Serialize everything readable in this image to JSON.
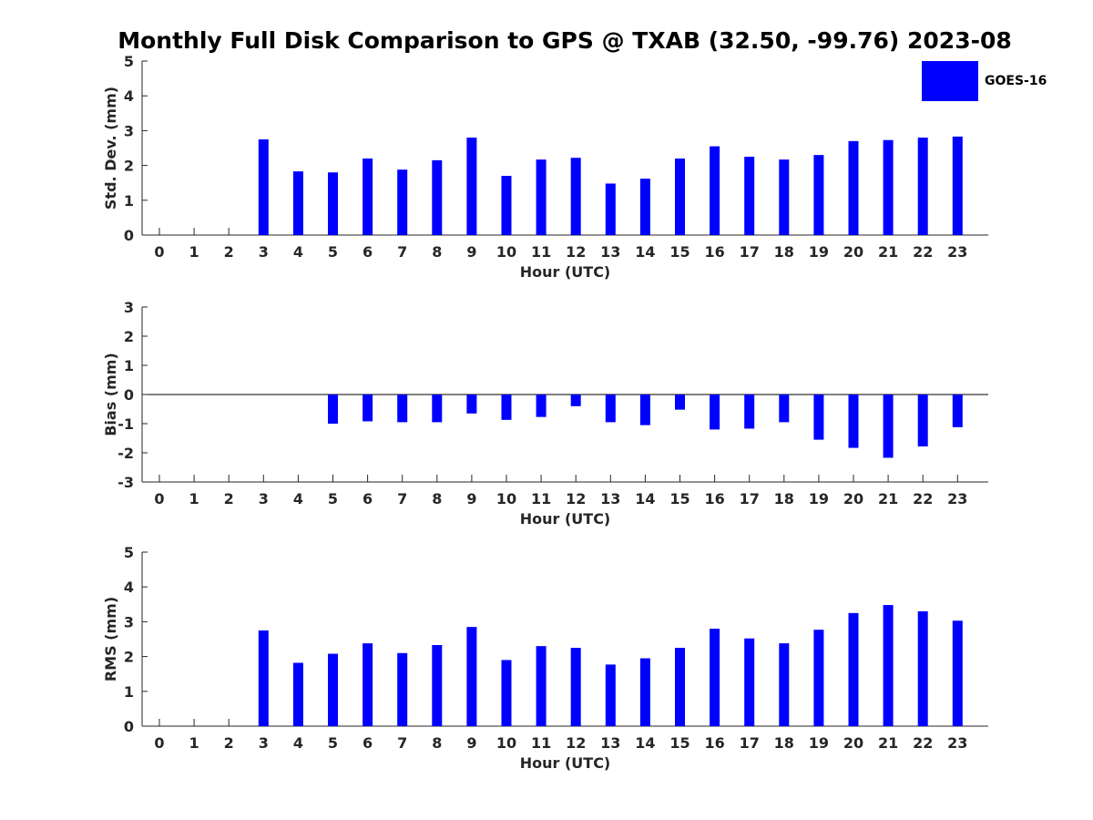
{
  "title": "Monthly Full Disk Comparison to GPS @ TXAB (32.50, -99.76) 2023-08",
  "legend": {
    "label": "GOES-16",
    "color": "#0000ff"
  },
  "chart_data": [
    {
      "type": "bar",
      "ylabel": "Std. Dev. (mm)",
      "xlabel": "Hour (UTC)",
      "ylim": [
        0,
        5
      ],
      "yticks": [
        0,
        1,
        2,
        3,
        4,
        5
      ],
      "categories": [
        "0",
        "1",
        "2",
        "3",
        "4",
        "5",
        "6",
        "7",
        "8",
        "9",
        "10",
        "11",
        "12",
        "13",
        "14",
        "15",
        "16",
        "17",
        "18",
        "19",
        "20",
        "21",
        "22",
        "23"
      ],
      "series": [
        {
          "name": "GOES-16",
          "values": [
            null,
            null,
            null,
            2.75,
            1.83,
            1.8,
            2.2,
            1.88,
            2.15,
            2.8,
            1.7,
            2.17,
            2.22,
            1.48,
            1.62,
            2.2,
            2.55,
            2.25,
            2.17,
            2.3,
            2.7,
            2.73,
            2.8,
            2.83
          ]
        }
      ],
      "grid": false
    },
    {
      "type": "bar",
      "ylabel": "Bias (mm)",
      "xlabel": "Hour (UTC)",
      "ylim": [
        -3,
        3
      ],
      "yticks": [
        -3,
        -2,
        -1,
        0,
        1,
        2,
        3
      ],
      "categories": [
        "0",
        "1",
        "2",
        "3",
        "4",
        "5",
        "6",
        "7",
        "8",
        "9",
        "10",
        "11",
        "12",
        "13",
        "14",
        "15",
        "16",
        "17",
        "18",
        "19",
        "20",
        "21",
        "22",
        "23"
      ],
      "series": [
        {
          "name": "GOES-16",
          "values": [
            null,
            null,
            null,
            0.0,
            0.0,
            -1.0,
            -0.92,
            -0.95,
            -0.95,
            -0.65,
            -0.87,
            -0.77,
            -0.4,
            -0.95,
            -1.05,
            -0.52,
            -1.2,
            -1.17,
            -0.95,
            -1.55,
            -1.83,
            -2.17,
            -1.78,
            -1.12
          ]
        }
      ],
      "grid": false
    },
    {
      "type": "bar",
      "ylabel": "RMS (mm)",
      "xlabel": "Hour (UTC)",
      "ylim": [
        0,
        5
      ],
      "yticks": [
        0,
        1,
        2,
        3,
        4,
        5
      ],
      "categories": [
        "0",
        "1",
        "2",
        "3",
        "4",
        "5",
        "6",
        "7",
        "8",
        "9",
        "10",
        "11",
        "12",
        "13",
        "14",
        "15",
        "16",
        "17",
        "18",
        "19",
        "20",
        "21",
        "22",
        "23"
      ],
      "series": [
        {
          "name": "GOES-16",
          "values": [
            null,
            null,
            null,
            2.75,
            1.82,
            2.08,
            2.38,
            2.1,
            2.33,
            2.85,
            1.9,
            2.3,
            2.25,
            1.77,
            1.95,
            2.25,
            2.8,
            2.52,
            2.38,
            2.77,
            3.25,
            3.48,
            3.3,
            3.03
          ]
        }
      ],
      "grid": false
    }
  ]
}
